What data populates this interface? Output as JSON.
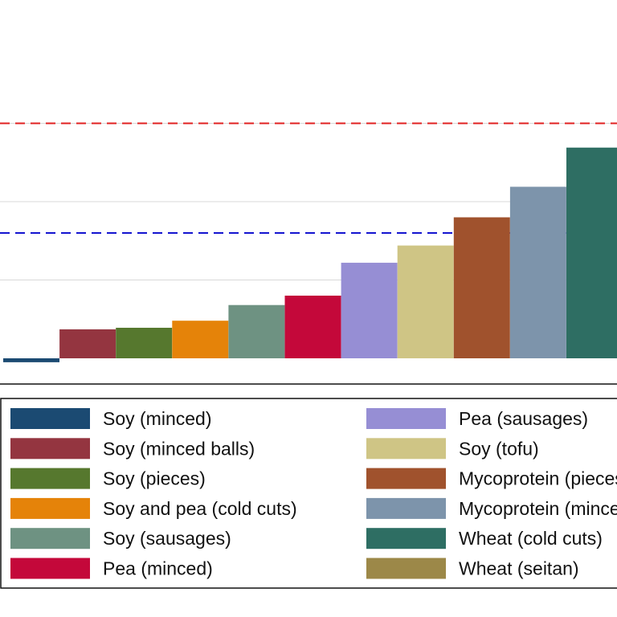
{
  "chart_data": {
    "type": "bar",
    "title": "",
    "xlabel": "",
    "ylabel": "",
    "ylim": [
      -0.1,
      3.5
    ],
    "grid": true,
    "legend_placement": "bottom",
    "reference_lines": [
      {
        "value": 3.0,
        "color": "#e02020"
      },
      {
        "value": 1.6,
        "color": "#1414d0"
      }
    ],
    "categories": [
      "Soy (minced)",
      "Soy (minced balls)",
      "Soy (pieces)",
      "Soy and pea (cold cuts)",
      "Soy (sausages)",
      "Pea (minced)",
      "Pea (sausages)",
      "Soy (tofu)",
      "Mycoprotein (pieces)",
      "Mycoprotein (minced)",
      "Wheat (cold cuts)",
      "Wheat (seitan)"
    ],
    "values": [
      -0.05,
      0.37,
      0.39,
      0.48,
      0.68,
      0.8,
      1.22,
      1.44,
      1.8,
      2.19,
      2.69,
      null
    ],
    "colors": [
      "#1b4a72",
      "#943540",
      "#56782e",
      "#e58309",
      "#6e9282",
      "#c4083a",
      "#968ed4",
      "#cfc585",
      "#a0522d",
      "#7d94ab",
      "#2e6e63",
      "#9c8848"
    ]
  }
}
